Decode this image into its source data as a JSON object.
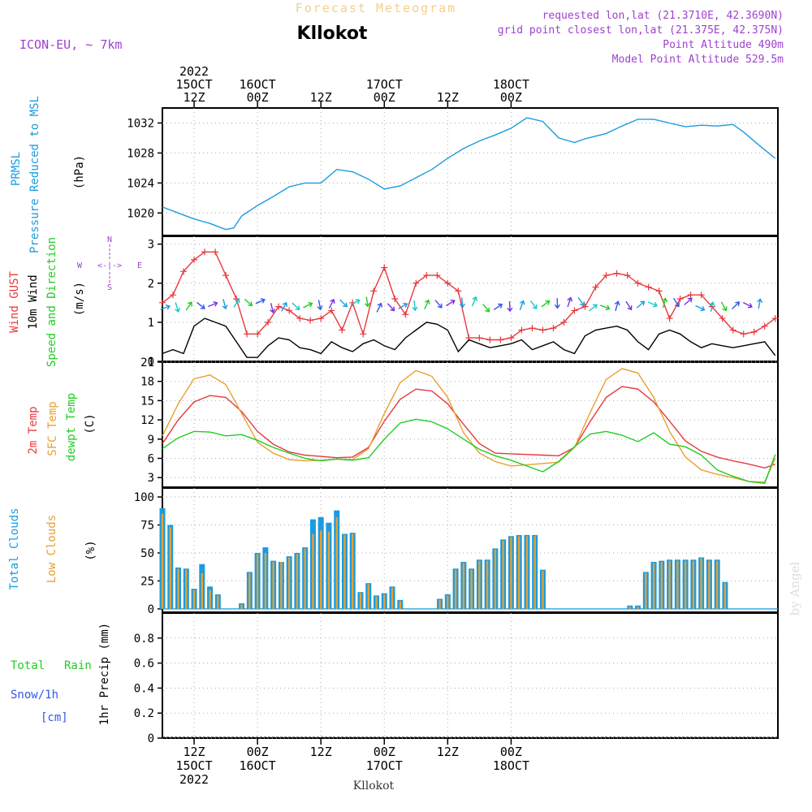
{
  "header": {
    "title": "Forecast Meteogram",
    "location": "Kllokot",
    "model": "ICON-EU, ~ 7km",
    "requested": "requested lon,lat (21.3710E, 42.3690N)",
    "grid_point": "grid point closest lon,lat (21.375E, 42.375N)",
    "point_altitude": "Point Altitude 490m",
    "model_altitude": "Model Point Altitude 529.5m",
    "footer_location": "Kllokot",
    "credit": "by Angel",
    "compass": {
      "n": "N",
      "s": "S",
      "w": "W",
      "e": "E",
      "arrow": "<-|->"
    }
  },
  "colors": {
    "blue": "#1a9be0",
    "red": "#e8383d",
    "orange": "#e8a030",
    "green": "#22cc22",
    "black": "#000000",
    "purple": "#a040d0",
    "cyan": "#18c8c8",
    "tan": "#f4cf8a",
    "grid": "#bbbbbb"
  },
  "chart_data": [
    {
      "type": "line",
      "id": "pressure",
      "title": "PRMSL Pressure Reduced to MSL",
      "ylabel": "(hPa)",
      "ylabel_lines": [
        "PRMSL",
        "Pressure Reduced to MSL"
      ],
      "unit_label": "(hPa)",
      "ylim": [
        1017,
        1034
      ],
      "yticks": [
        1020,
        1024,
        1028,
        1032
      ],
      "x_hours": [
        0,
        3,
        6,
        9,
        12,
        13.5,
        15,
        18,
        21,
        24,
        27,
        30,
        33,
        36,
        39,
        42,
        45,
        48,
        51,
        54,
        57,
        60,
        63,
        66,
        69,
        72,
        75,
        78,
        80,
        84,
        87,
        90,
        93,
        96,
        99,
        102,
        105,
        108,
        110,
        113,
        116
      ],
      "series": [
        {
          "name": "PRMSL",
          "color": "#1a9be0",
          "values": [
            1020.8,
            1020.0,
            1019.2,
            1018.6,
            1017.8,
            1018.0,
            1019.6,
            1021.0,
            1022.2,
            1023.5,
            1024.0,
            1024.0,
            1025.8,
            1025.5,
            1024.5,
            1023.2,
            1023.6,
            1024.7,
            1025.8,
            1027.3,
            1028.6,
            1029.6,
            1030.4,
            1031.3,
            1032.7,
            1032.2,
            1030.0,
            1029.4,
            1029.9,
            1030.6,
            1031.6,
            1032.5,
            1032.5,
            1032.0,
            1031.5,
            1031.7,
            1031.6,
            1031.8,
            1030.8,
            1029.0,
            1027.3
          ]
        }
      ]
    },
    {
      "type": "line",
      "id": "wind",
      "ylabel_lines": [
        "Wind GUST",
        "10m Wind",
        "Speed and Direction"
      ],
      "unit_label": "(m/s)",
      "ylim": [
        0,
        3.2
      ],
      "yticks": [
        0,
        1,
        2,
        3
      ],
      "x_hours": [
        0,
        2,
        4,
        6,
        8,
        10,
        12,
        14,
        16,
        18,
        20,
        22,
        24,
        26,
        28,
        30,
        32,
        34,
        36,
        38,
        40,
        42,
        44,
        46,
        48,
        50,
        52,
        54,
        56,
        58,
        60,
        62,
        64,
        66,
        68,
        70,
        72,
        74,
        76,
        78,
        80,
        82,
        84,
        86,
        88,
        90,
        92,
        94,
        96,
        98,
        100,
        102,
        104,
        106,
        108,
        110,
        112,
        114,
        116
      ],
      "series": [
        {
          "name": "Wind GUST",
          "color": "#e8383d",
          "marker": "+",
          "values": [
            1.5,
            1.7,
            2.3,
            2.6,
            2.8,
            2.8,
            2.2,
            1.6,
            0.7,
            0.7,
            1.0,
            1.4,
            1.3,
            1.1,
            1.05,
            1.1,
            1.3,
            0.8,
            1.5,
            0.7,
            1.8,
            2.4,
            1.6,
            1.2,
            2.0,
            2.2,
            2.2,
            2.0,
            1.8,
            0.6,
            0.6,
            0.55,
            0.55,
            0.6,
            0.8,
            0.85,
            0.8,
            0.85,
            1.0,
            1.3,
            1.4,
            1.9,
            2.2,
            2.25,
            2.2,
            2.0,
            1.9,
            1.8,
            1.1,
            1.6,
            1.7,
            1.7,
            1.4,
            1.1,
            0.8,
            0.7,
            0.75,
            0.9,
            1.1
          ]
        },
        {
          "name": "10m Wind",
          "color": "#000000",
          "values": [
            0.2,
            0.3,
            0.2,
            0.9,
            1.1,
            1.0,
            0.9,
            0.5,
            0.1,
            0.1,
            0.4,
            0.6,
            0.55,
            0.35,
            0.3,
            0.2,
            0.5,
            0.35,
            0.25,
            0.45,
            0.55,
            0.4,
            0.3,
            0.6,
            0.8,
            1.0,
            0.95,
            0.8,
            0.25,
            0.55,
            0.45,
            0.35,
            0.4,
            0.45,
            0.55,
            0.3,
            0.4,
            0.5,
            0.3,
            0.2,
            0.65,
            0.8,
            0.85,
            0.9,
            0.8,
            0.5,
            0.3,
            0.7,
            0.8,
            0.7,
            0.5,
            0.35,
            0.45,
            0.4,
            0.35,
            0.4,
            0.45,
            0.5,
            0.15
          ]
        }
      ]
    },
    {
      "type": "line",
      "id": "temperature",
      "ylabel_lines": [
        "2m Temp",
        "SFC Temp",
        "dewpt Temp"
      ],
      "unit_label": "(C)",
      "ylim": [
        1.5,
        21
      ],
      "yticks": [
        3,
        6,
        9,
        12,
        15,
        18,
        21
      ],
      "x_hours": [
        0,
        3,
        6,
        9,
        12,
        15,
        18,
        21,
        24,
        27,
        30,
        33,
        36,
        39,
        42,
        45,
        48,
        51,
        54,
        57,
        60,
        63,
        66,
        69,
        72,
        75,
        78,
        81,
        84,
        87,
        90,
        93,
        96,
        99,
        102,
        105,
        108,
        111,
        114,
        116
      ],
      "series": [
        {
          "name": "2m Temp",
          "color": "#e8383d",
          "values": [
            8.3,
            12.0,
            14.8,
            15.8,
            15.5,
            13.3,
            10.2,
            8.2,
            7.0,
            6.5,
            6.3,
            6.1,
            6.2,
            7.7,
            11.8,
            15.2,
            16.8,
            16.5,
            14.5,
            11.3,
            8.3,
            6.8,
            6.7,
            6.6,
            6.5,
            6.4,
            7.7,
            11.8,
            15.5,
            17.2,
            16.8,
            14.8,
            11.8,
            8.7,
            7.1,
            6.2,
            5.6,
            5.1,
            4.5,
            5.1
          ]
        },
        {
          "name": "SFC Temp",
          "color": "#e8a030",
          "values": [
            9.5,
            14.5,
            18.4,
            19.0,
            17.5,
            13.0,
            8.5,
            6.8,
            5.8,
            5.6,
            5.7,
            5.9,
            5.8,
            7.5,
            13.0,
            17.8,
            19.7,
            18.8,
            15.5,
            10.0,
            6.8,
            5.5,
            4.8,
            5.0,
            5.2,
            5.4,
            7.7,
            13.2,
            18.3,
            20.0,
            19.3,
            15.5,
            10.2,
            6.2,
            4.2,
            3.5,
            3.0,
            2.4,
            2.3,
            6.0
          ]
        },
        {
          "name": "dewpt Temp",
          "color": "#22cc22",
          "values": [
            7.5,
            9.2,
            10.2,
            10.1,
            9.5,
            9.7,
            8.8,
            7.7,
            6.8,
            6.0,
            5.6,
            5.9,
            5.7,
            6.1,
            9.0,
            11.5,
            12.1,
            11.7,
            10.6,
            9.0,
            7.4,
            6.4,
            5.7,
            4.8,
            3.9,
            5.5,
            7.8,
            9.8,
            10.2,
            9.6,
            8.6,
            10.0,
            8.2,
            7.8,
            6.5,
            4.2,
            3.2,
            2.4,
            2.1,
            6.6
          ]
        }
      ]
    },
    {
      "type": "bar",
      "id": "clouds",
      "ylabel_lines": [
        "Total Clouds",
        "Low Clouds"
      ],
      "unit_label": "(%)",
      "ylim": [
        -3,
        108
      ],
      "yticks": [
        0,
        25,
        50,
        75,
        100
      ],
      "x_hours": [
        0,
        1.5,
        3,
        4.5,
        6,
        7.5,
        9,
        10.5,
        12,
        13.5,
        15,
        16.5,
        18,
        19.5,
        21,
        22.5,
        24,
        25.5,
        27,
        28.5,
        30,
        31.5,
        33,
        34.5,
        36,
        37.5,
        39,
        40.5,
        42,
        43.5,
        45,
        46.5,
        48,
        49.5,
        51,
        52.5,
        54,
        55.5,
        57,
        58.5,
        60,
        61.5,
        63,
        64.5,
        66,
        67.5,
        69,
        70.5,
        72,
        73.5,
        75,
        76.5,
        78,
        79.5,
        81,
        82.5,
        84,
        85.5,
        87,
        88.5,
        90,
        91.5,
        93,
        94.5,
        96,
        97.5,
        99,
        100.5,
        102,
        103.5,
        105,
        106.5,
        108,
        109.5,
        111,
        112.5,
        114,
        115.5
      ],
      "series": [
        {
          "name": "Total Clouds",
          "color": "#1a9be0",
          "values": [
            90,
            75,
            37,
            36,
            18,
            40,
            20,
            13,
            0,
            0,
            5,
            33,
            50,
            55,
            43,
            42,
            47,
            50,
            55,
            80,
            82,
            77,
            88,
            67,
            68,
            15,
            23,
            12,
            14,
            20,
            8,
            0,
            0,
            0,
            0,
            9,
            13,
            36,
            42,
            36,
            44,
            44,
            54,
            62,
            65,
            66,
            66,
            66,
            35,
            0,
            0,
            0,
            0,
            0,
            0,
            0,
            0,
            0,
            0,
            3,
            3,
            33,
            42,
            43,
            44,
            44,
            44,
            44,
            46,
            44,
            44,
            24,
            0,
            0,
            0,
            0,
            0,
            0
          ]
        },
        {
          "name": "Low Clouds",
          "color": "#e8a030",
          "values": [
            85,
            73,
            36,
            35,
            17,
            32,
            17,
            12,
            0,
            0,
            4,
            32,
            49,
            50,
            42,
            42,
            46,
            49,
            54,
            67,
            70,
            69,
            82,
            66,
            67,
            14,
            22,
            11,
            13,
            19,
            7,
            0,
            0,
            0,
            0,
            8,
            12,
            35,
            41,
            35,
            43,
            43,
            53,
            61,
            64,
            65,
            65,
            65,
            34,
            0,
            0,
            0,
            0,
            0,
            0,
            0,
            0,
            0,
            0,
            2,
            2,
            32,
            41,
            42,
            43,
            43,
            43,
            43,
            45,
            43,
            43,
            23,
            0,
            0,
            0,
            0,
            0,
            0
          ]
        }
      ]
    },
    {
      "type": "bar",
      "id": "precip",
      "ylabel": "1hr Precip (mm)",
      "unit_label": "1hr Precip (mm)",
      "ylabel_lines": [
        "Total",
        "Rain",
        "Snow/1h",
        "[cm]"
      ],
      "ylim": [
        0,
        1.0
      ],
      "yticks": [
        0,
        0.2,
        0.4,
        0.6,
        0.8
      ],
      "series": [
        {
          "name": "Total Rain",
          "values": []
        },
        {
          "name": "Snow/1h",
          "values": []
        }
      ]
    }
  ],
  "time_axis": {
    "top": [
      {
        "hour": 6,
        "lines": [
          "2022",
          "15OCT",
          "12Z"
        ]
      },
      {
        "hour": 18,
        "lines": [
          "16OCT",
          "00Z"
        ]
      },
      {
        "hour": 30,
        "lines": [
          "12Z"
        ]
      },
      {
        "hour": 42,
        "lines": [
          "17OCT",
          "00Z"
        ]
      },
      {
        "hour": 54,
        "lines": [
          "12Z"
        ]
      },
      {
        "hour": 66,
        "lines": [
          "18OCT",
          "00Z"
        ]
      }
    ],
    "bottom": [
      {
        "hour": 6,
        "lines": [
          "12Z",
          "15OCT",
          "2022"
        ]
      },
      {
        "hour": 18,
        "lines": [
          "00Z",
          "16OCT"
        ]
      },
      {
        "hour": 30,
        "lines": [
          "12Z"
        ]
      },
      {
        "hour": 42,
        "lines": [
          "00Z",
          "17OCT"
        ]
      },
      {
        "hour": 54,
        "lines": [
          "12Z"
        ]
      },
      {
        "hour": 66,
        "lines": [
          "00Z",
          "18OCT"
        ]
      }
    ]
  }
}
